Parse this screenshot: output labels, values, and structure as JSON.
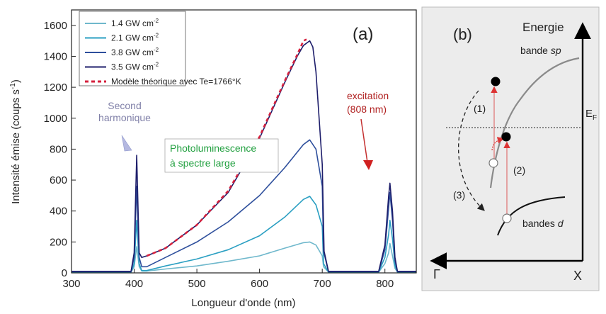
{
  "chart_data": [
    {
      "panel": "(a)",
      "type": "line",
      "xlabel": "Longueur d'onde (nm)",
      "ylabel_main": "Intensité émise (coups s",
      "ylabel_sup": "-1",
      "ylabel_end": ")",
      "xlim": [
        300,
        850
      ],
      "ylim": [
        0,
        1700
      ],
      "xticks": [
        300,
        400,
        500,
        600,
        700,
        800
      ],
      "yticks": [
        0,
        200,
        400,
        600,
        800,
        1000,
        1200,
        1400,
        1600
      ],
      "series": [
        {
          "name": "1.4 GW cm",
          "sup": "-2",
          "color": "#6fb8cc",
          "x": [
            300,
            395,
            400,
            404,
            408,
            412,
            420,
            450,
            500,
            550,
            600,
            640,
            670,
            680,
            690,
            700,
            702,
            710,
            790,
            800,
            806,
            808,
            812,
            816,
            820,
            850
          ],
          "y": [
            5,
            5,
            40,
            170,
            40,
            12,
            12,
            25,
            45,
            75,
            110,
            160,
            195,
            200,
            180,
            110,
            40,
            5,
            5,
            60,
            130,
            190,
            110,
            30,
            5,
            5
          ]
        },
        {
          "name": "2.1 GW cm",
          "sup": "-2",
          "color": "#2a9fc2",
          "x": [
            300,
            395,
            400,
            404,
            408,
            412,
            420,
            450,
            500,
            550,
            600,
            640,
            670,
            680,
            690,
            700,
            702,
            710,
            790,
            800,
            806,
            808,
            812,
            816,
            820,
            850
          ],
          "y": [
            5,
            5,
            60,
            340,
            60,
            15,
            15,
            45,
            90,
            150,
            240,
            360,
            475,
            495,
            440,
            300,
            60,
            5,
            5,
            100,
            250,
            340,
            220,
            50,
            5,
            5
          ]
        },
        {
          "name": "3.8 GW cm",
          "sup": "-2",
          "color": "#2e4f9c",
          "x": [
            300,
            395,
            400,
            404,
            408,
            412,
            420,
            450,
            500,
            550,
            600,
            640,
            670,
            680,
            690,
            700,
            702,
            710,
            790,
            800,
            806,
            808,
            812,
            816,
            820,
            850
          ],
          "y": [
            8,
            8,
            100,
            560,
            100,
            40,
            40,
            100,
            200,
            330,
            500,
            680,
            830,
            860,
            800,
            560,
            140,
            8,
            8,
            150,
            420,
            520,
            340,
            80,
            8,
            8
          ]
        },
        {
          "name": "3.5 GW cm",
          "sup": "-2",
          "color": "#1e1e6b",
          "x": [
            300,
            395,
            400,
            404,
            408,
            412,
            420,
            450,
            500,
            550,
            600,
            620,
            640,
            660,
            670,
            680,
            685,
            690,
            700,
            703,
            710,
            790,
            800,
            806,
            808,
            812,
            816,
            820,
            850
          ],
          "y": [
            10,
            10,
            130,
            760,
            130,
            100,
            110,
            160,
            310,
            520,
            870,
            1050,
            1230,
            1400,
            1470,
            1500,
            1460,
            1300,
            700,
            140,
            10,
            10,
            180,
            500,
            580,
            400,
            100,
            10,
            10
          ]
        },
        {
          "name": "Modèle théorique avec Te=1766°K",
          "color": "#d6203d",
          "dashed": true,
          "x": [
            420,
            450,
            500,
            550,
            600,
            620,
            640,
            660,
            670,
            675
          ],
          "y": [
            110,
            160,
            310,
            530,
            880,
            1060,
            1240,
            1410,
            1500,
            1510
          ]
        }
      ],
      "annotations": {
        "panel_label": "(a)",
        "shg_line1": "Second",
        "shg_line2": "harmonique",
        "exc_line1": "excitation",
        "exc_line2": "(808 nm)",
        "pl_line1": "Photoluminescence",
        "pl_line2": "à spectre large"
      },
      "colors": {
        "shg": "#8080a8",
        "excitation": "#b02020",
        "photolum": "#22a040"
      }
    },
    {
      "panel": "(b)",
      "type": "diagram",
      "panel_label": "(b)",
      "energy_label": "Energie",
      "band_sp_prefix": "bande ",
      "band_sp_italic": "sp",
      "band_d_prefix": "bandes ",
      "band_d_italic": "d",
      "fermi_main": "E",
      "fermi_sub": "F",
      "step1": "(1)",
      "step2": "(2)",
      "step3": "(3)",
      "axis_left": "Γ",
      "axis_right": "X",
      "background": "#ececec"
    }
  ]
}
